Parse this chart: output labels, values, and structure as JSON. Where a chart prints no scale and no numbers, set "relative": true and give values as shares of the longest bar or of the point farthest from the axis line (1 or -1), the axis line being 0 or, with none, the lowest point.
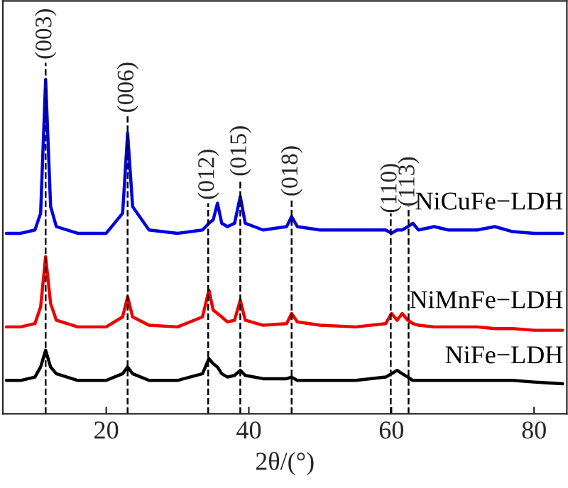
{
  "chart_data": {
    "type": "line",
    "relative": true,
    "xlabel": "2θ/(°)",
    "xlim": [
      5.5,
      84.6
    ],
    "xticks": [
      20,
      40,
      60,
      80
    ],
    "tick_labels": "x",
    "legend": false,
    "grid": false,
    "line_style": "solid",
    "marker": "none",
    "x": [
      6,
      8,
      10,
      10.8,
      11.5,
      12.2,
      13,
      16,
      20,
      22.3,
      23,
      23.7,
      26,
      30,
      33.5,
      34.4,
      35,
      35.6,
      36.2,
      37,
      38,
      38.8,
      39.5,
      42,
      45.3,
      46,
      46.8,
      50,
      55,
      59.2,
      60,
      60.8,
      61.5,
      62.3,
      63,
      63.8,
      66,
      68,
      72,
      74.5,
      77,
      80,
      84
    ],
    "series": [
      {
        "name": "NiCuFe−LDH",
        "color": "#0000e0",
        "values": [
          0.54,
          0.54,
          0.55,
          0.6,
          1.0,
          0.62,
          0.56,
          0.54,
          0.54,
          0.6,
          0.84,
          0.62,
          0.55,
          0.54,
          0.55,
          0.57,
          0.58,
          0.63,
          0.57,
          0.56,
          0.57,
          0.65,
          0.57,
          0.55,
          0.56,
          0.59,
          0.56,
          0.55,
          0.55,
          0.55,
          0.54,
          0.55,
          0.55,
          0.56,
          0.57,
          0.55,
          0.56,
          0.55,
          0.55,
          0.56,
          0.545,
          0.54,
          0.54
        ]
      },
      {
        "name": "NiMnFe−LDH",
        "color": "#ee0000",
        "values": [
          0.26,
          0.26,
          0.27,
          0.32,
          0.47,
          0.33,
          0.28,
          0.26,
          0.26,
          0.29,
          0.35,
          0.29,
          0.265,
          0.26,
          0.29,
          0.37,
          0.31,
          0.3,
          0.29,
          0.275,
          0.28,
          0.34,
          0.28,
          0.265,
          0.27,
          0.3,
          0.275,
          0.265,
          0.26,
          0.27,
          0.3,
          0.28,
          0.3,
          0.28,
          0.27,
          0.265,
          0.26,
          0.26,
          0.26,
          0.255,
          0.255,
          0.25,
          0.25
        ]
      },
      {
        "name": "NiFe−LDH",
        "color": "#000000",
        "values": [
          0.1,
          0.1,
          0.11,
          0.14,
          0.19,
          0.14,
          0.12,
          0.1,
          0.1,
          0.12,
          0.14,
          0.12,
          0.1,
          0.1,
          0.12,
          0.165,
          0.15,
          0.14,
          0.12,
          0.11,
          0.115,
          0.13,
          0.115,
          0.105,
          0.105,
          0.11,
          0.1,
          0.1,
          0.1,
          0.11,
          0.12,
          0.13,
          0.12,
          0.11,
          0.1,
          0.1,
          0.1,
          0.1,
          0.1,
          0.1,
          0.1,
          0.095,
          0.09
        ]
      }
    ],
    "ref_lines": [
      {
        "axis": "x",
        "value": 11.5,
        "color": "#000000",
        "line_style": "dashed"
      },
      {
        "axis": "x",
        "value": 23.0,
        "color": "#000000",
        "line_style": "dashed"
      },
      {
        "axis": "x",
        "value": 34.3,
        "color": "#000000",
        "line_style": "dashed"
      },
      {
        "axis": "x",
        "value": 38.8,
        "color": "#000000",
        "line_style": "dashed"
      },
      {
        "axis": "x",
        "value": 46.0,
        "color": "#000000",
        "line_style": "dashed"
      },
      {
        "axis": "x",
        "value": 59.9,
        "color": "#000000",
        "line_style": "dashed"
      },
      {
        "axis": "x",
        "value": 62.4,
        "color": "#000000",
        "line_style": "dashed"
      }
    ],
    "annotations": [
      {
        "text": "(003)",
        "x": 11.5,
        "y": 1.0
      },
      {
        "text": "(006)",
        "x": 23.0,
        "y": 0.84
      },
      {
        "text": "(012)",
        "x": 34.3,
        "y": 0.58
      },
      {
        "text": "(015)",
        "x": 38.8,
        "y": 0.65
      },
      {
        "text": "(018)",
        "x": 46.0,
        "y": 0.59
      },
      {
        "text": "(110)",
        "x": 59.9,
        "y": 0.54
      },
      {
        "text": "(113)",
        "x": 62.4,
        "y": 0.56
      }
    ]
  }
}
